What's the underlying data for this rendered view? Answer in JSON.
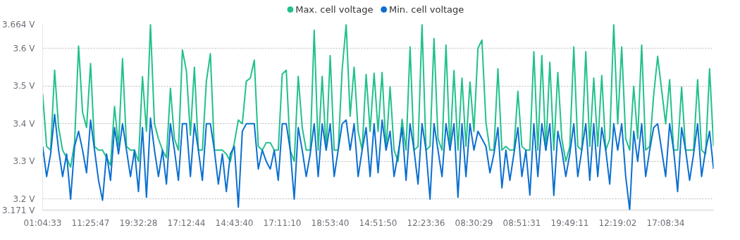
{
  "chart_data": {
    "type": "line",
    "categories": [
      "01:04:33",
      null,
      null,
      null,
      null,
      null,
      null,
      null,
      null,
      null,
      null,
      null,
      "11:25:47",
      null,
      null,
      null,
      null,
      null,
      null,
      null,
      null,
      null,
      null,
      null,
      "19:32:28",
      null,
      null,
      null,
      null,
      null,
      null,
      null,
      null,
      null,
      null,
      null,
      "17:12:44",
      null,
      null,
      null,
      null,
      null,
      null,
      null,
      null,
      null,
      null,
      null,
      "14:43:40",
      null,
      null,
      null,
      null,
      null,
      null,
      null,
      null,
      null,
      null,
      null,
      "17:11:10",
      null,
      null,
      null,
      null,
      null,
      null,
      null,
      null,
      null,
      null,
      null,
      "18:53:40",
      null,
      null,
      null,
      null,
      null,
      null,
      null,
      null,
      null,
      null,
      null,
      "14:51:50",
      null,
      null,
      null,
      null,
      null,
      null,
      null,
      null,
      null,
      null,
      null,
      "12:23:36",
      null,
      null,
      null,
      null,
      null,
      null,
      null,
      null,
      null,
      null,
      null,
      "08:30:29",
      null,
      null,
      null,
      null,
      null,
      null,
      null,
      null,
      null,
      null,
      null,
      "08:51:31",
      null,
      null,
      null,
      null,
      null,
      null,
      null,
      null,
      null,
      null,
      null,
      "19:49:11",
      null,
      null,
      null,
      null,
      null,
      null,
      null,
      null,
      null,
      null,
      null,
      "12:19:02",
      null,
      null,
      null,
      null,
      null,
      null,
      null,
      null,
      null,
      null,
      null,
      "17:08:34",
      null,
      null,
      null,
      null,
      null,
      null,
      null,
      null,
      null,
      null,
      null,
      null
    ],
    "series": [
      {
        "name": "Max. cell voltage",
        "color": "#22c08c",
        "values": [
          3.479,
          3.34,
          3.33,
          3.542,
          3.39,
          3.33,
          3.31,
          3.285,
          3.35,
          3.606,
          3.43,
          3.39,
          3.56,
          3.34,
          3.33,
          3.33,
          3.31,
          3.29,
          3.446,
          3.34,
          3.573,
          3.34,
          3.33,
          3.33,
          3.3,
          3.525,
          3.38,
          3.664,
          3.4,
          3.36,
          3.33,
          3.31,
          3.494,
          3.36,
          3.33,
          3.596,
          3.54,
          3.37,
          3.55,
          3.33,
          3.33,
          3.513,
          3.586,
          3.33,
          3.33,
          3.33,
          3.32,
          3.3,
          3.35,
          3.41,
          3.4,
          3.513,
          3.521,
          3.569,
          3.34,
          3.33,
          3.35,
          3.35,
          3.33,
          3.33,
          3.532,
          3.542,
          3.33,
          3.3,
          3.526,
          3.39,
          3.33,
          3.33,
          3.648,
          3.33,
          3.526,
          3.33,
          3.581,
          3.33,
          3.33,
          3.544,
          3.664,
          3.42,
          3.55,
          3.38,
          3.33,
          3.531,
          3.38,
          3.534,
          3.38,
          3.536,
          3.33,
          3.498,
          3.33,
          3.3,
          3.412,
          3.33,
          3.604,
          3.33,
          3.34,
          3.664,
          3.33,
          3.34,
          3.626,
          3.36,
          3.33,
          3.609,
          3.33,
          3.541,
          3.33,
          3.521,
          3.34,
          3.511,
          3.38,
          3.6,
          3.622,
          3.404,
          3.33,
          3.33,
          3.546,
          3.33,
          3.34,
          3.33,
          3.33,
          3.486,
          3.34,
          3.33,
          3.33,
          3.591,
          3.33,
          3.581,
          3.33,
          3.563,
          3.33,
          3.536,
          3.36,
          3.3,
          3.34,
          3.604,
          3.34,
          3.33,
          3.591,
          3.34,
          3.521,
          3.34,
          3.528,
          3.33,
          3.36,
          3.664,
          3.4,
          3.604,
          3.36,
          3.33,
          3.499,
          3.36,
          3.609,
          3.33,
          3.34,
          3.476,
          3.579,
          3.49,
          3.4,
          3.517,
          3.33,
          3.33,
          3.497,
          3.33,
          3.33,
          3.33,
          3.517,
          3.33,
          3.32,
          3.546,
          3.34
        ]
      },
      {
        "name": "Min. cell voltage",
        "color": "#0b6fd0",
        "values": [
          3.34,
          3.26,
          3.32,
          3.425,
          3.33,
          3.26,
          3.32,
          3.2,
          3.34,
          3.38,
          3.33,
          3.27,
          3.41,
          3.33,
          3.25,
          3.197,
          3.32,
          3.25,
          3.39,
          3.32,
          3.4,
          3.33,
          3.26,
          3.33,
          3.22,
          3.39,
          3.205,
          3.415,
          3.33,
          3.26,
          3.33,
          3.24,
          3.4,
          3.33,
          3.25,
          3.4,
          3.4,
          3.26,
          3.4,
          3.33,
          3.25,
          3.4,
          3.4,
          3.33,
          3.24,
          3.32,
          3.22,
          3.32,
          3.34,
          3.179,
          3.38,
          3.4,
          3.4,
          3.4,
          3.28,
          3.33,
          3.3,
          3.28,
          3.33,
          3.25,
          3.4,
          3.4,
          3.33,
          3.2,
          3.39,
          3.33,
          3.26,
          3.32,
          3.4,
          3.26,
          3.4,
          3.33,
          3.4,
          3.26,
          3.33,
          3.4,
          3.41,
          3.33,
          3.4,
          3.26,
          3.33,
          3.39,
          3.26,
          3.4,
          3.27,
          3.41,
          3.33,
          3.38,
          3.26,
          3.32,
          3.39,
          3.25,
          3.4,
          3.33,
          3.24,
          3.4,
          3.33,
          3.2,
          3.4,
          3.33,
          3.26,
          3.4,
          3.33,
          3.4,
          3.205,
          3.4,
          3.26,
          3.4,
          3.33,
          3.38,
          3.36,
          3.34,
          3.27,
          3.32,
          3.39,
          3.23,
          3.33,
          3.25,
          3.32,
          3.39,
          3.26,
          3.33,
          3.211,
          3.4,
          3.26,
          3.4,
          3.33,
          3.4,
          3.21,
          3.38,
          3.33,
          3.26,
          3.32,
          3.4,
          3.26,
          3.33,
          3.4,
          3.25,
          3.4,
          3.26,
          3.39,
          3.33,
          3.24,
          3.4,
          3.33,
          3.4,
          3.26,
          3.171,
          3.38,
          3.3,
          3.4,
          3.26,
          3.33,
          3.39,
          3.4,
          3.33,
          3.26,
          3.4,
          3.33,
          3.22,
          3.39,
          3.33,
          3.25,
          3.32,
          3.4,
          3.26,
          3.33,
          3.38,
          3.28
        ]
      }
    ],
    "ylim": [
      3.171,
      3.664
    ],
    "yticks": [
      {
        "value": 3.171,
        "label": "3.171 V"
      },
      {
        "value": 3.2,
        "label": "3.2 V"
      },
      {
        "value": 3.3,
        "label": "3.3 V"
      },
      {
        "value": 3.4,
        "label": "3.4 V"
      },
      {
        "value": 3.5,
        "label": "3.5 V"
      },
      {
        "value": 3.6,
        "label": "3.6 V"
      },
      {
        "value": 3.664,
        "label": "3.664 V"
      }
    ],
    "grid": "y",
    "legend": "top"
  }
}
